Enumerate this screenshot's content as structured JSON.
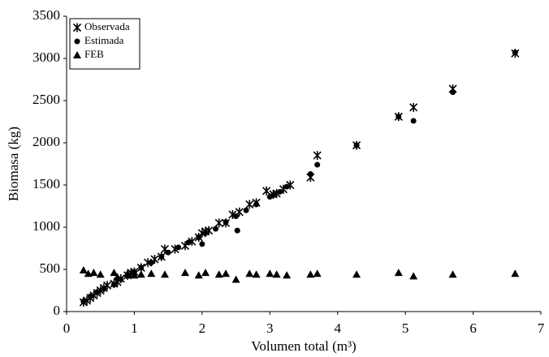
{
  "chart_data": {
    "type": "scatter",
    "x_label": "Volumen total (m³)",
    "y_label": "Biomasa (kg)",
    "xlim": [
      0,
      7
    ],
    "xticks": [
      0,
      1,
      2,
      3,
      4,
      5,
      6,
      7
    ],
    "ylim": [
      0,
      3500
    ],
    "yticks": [
      0,
      500,
      1000,
      1500,
      2000,
      2500,
      3000,
      3500
    ],
    "grid": false,
    "legend": "upper-left",
    "series": [
      {
        "name": "Observada",
        "color": "#000000",
        "marker": "asterisk",
        "x": [
          0.25,
          0.3,
          0.35,
          0.4,
          0.45,
          0.5,
          0.55,
          0.6,
          0.7,
          0.75,
          0.8,
          0.9,
          0.95,
          1.0,
          1.1,
          1.2,
          1.3,
          1.4,
          1.45,
          1.6,
          1.75,
          1.85,
          1.95,
          2.0,
          2.05,
          2.1,
          2.25,
          2.35,
          2.45,
          2.55,
          2.7,
          2.8,
          2.95,
          3.05,
          3.1,
          3.2,
          3.3,
          3.6,
          3.7,
          4.28,
          4.9,
          5.12,
          5.7,
          6.62
        ],
        "values": [
          110,
          130,
          160,
          190,
          220,
          250,
          280,
          310,
          330,
          350,
          390,
          430,
          460,
          470,
          520,
          580,
          620,
          650,
          740,
          740,
          780,
          830,
          880,
          930,
          950,
          960,
          1050,
          1050,
          1150,
          1180,
          1270,
          1290,
          1430,
          1390,
          1400,
          1450,
          1500,
          1590,
          1850,
          1970,
          2310,
          2420,
          2640,
          3060
        ]
      },
      {
        "name": "Estimada",
        "color": "#000000",
        "marker": "circle",
        "x": [
          0.25,
          0.35,
          0.45,
          0.55,
          0.7,
          0.8,
          0.9,
          1.0,
          1.1,
          1.25,
          1.4,
          1.5,
          1.65,
          1.8,
          1.95,
          2.0,
          2.05,
          2.2,
          2.35,
          2.5,
          2.52,
          2.65,
          2.8,
          3.0,
          3.05,
          3.15,
          3.25,
          3.6,
          3.7,
          4.28,
          4.9,
          5.12,
          5.7,
          6.62
        ],
        "values": [
          120,
          180,
          230,
          270,
          320,
          380,
          420,
          470,
          520,
          580,
          650,
          700,
          760,
          820,
          880,
          800,
          930,
          980,
          1060,
          1130,
          960,
          1200,
          1270,
          1360,
          1380,
          1420,
          1480,
          1630,
          1740,
          1970,
          2310,
          2260,
          2600,
          3070
        ]
      },
      {
        "name": "FEB",
        "color": "#000000",
        "marker": "triangle",
        "x": [
          0.25,
          0.32,
          0.4,
          0.5,
          0.7,
          0.75,
          0.9,
          1.0,
          1.1,
          1.25,
          1.45,
          1.75,
          1.95,
          2.05,
          2.25,
          2.35,
          2.5,
          2.7,
          2.8,
          3.0,
          3.1,
          3.25,
          3.6,
          3.7,
          4.28,
          4.9,
          5.12,
          5.7,
          6.62
        ],
        "values": [
          490,
          450,
          460,
          440,
          460,
          410,
          450,
          430,
          440,
          450,
          440,
          460,
          430,
          460,
          440,
          450,
          380,
          450,
          440,
          450,
          440,
          430,
          440,
          450,
          440,
          460,
          420,
          440,
          450
        ]
      }
    ]
  }
}
